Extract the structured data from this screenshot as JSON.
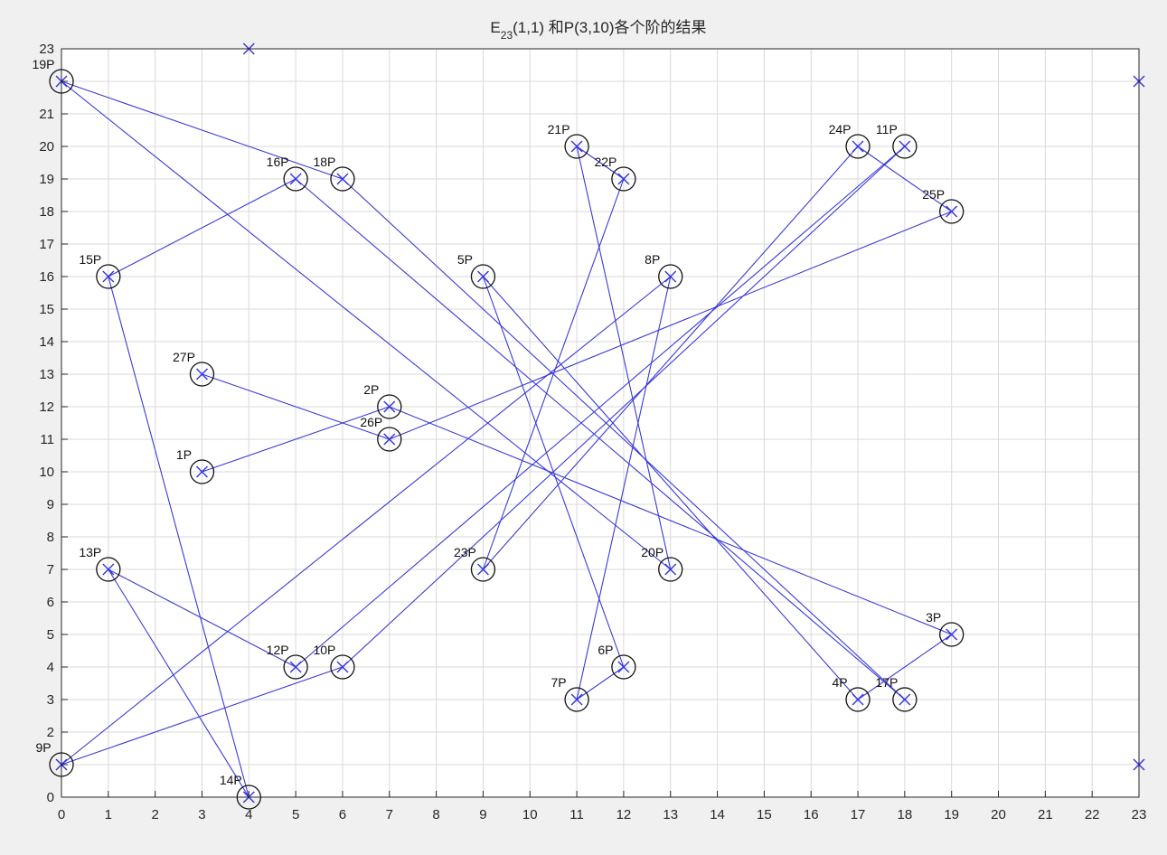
{
  "chart_data": {
    "type": "scatter",
    "title": {
      "base": "E",
      "subscript": "23",
      "rest": "(1,1) 和P(3,10)各个阶的结果"
    },
    "xlabel": "",
    "ylabel": "",
    "xlim": [
      0,
      23
    ],
    "ylim": [
      0,
      23
    ],
    "xticks": [
      0,
      1,
      2,
      3,
      4,
      5,
      6,
      7,
      8,
      9,
      10,
      11,
      12,
      13,
      14,
      15,
      16,
      17,
      18,
      19,
      20,
      21,
      22,
      23
    ],
    "yticks": [
      0,
      1,
      2,
      3,
      4,
      5,
      6,
      7,
      8,
      9,
      10,
      11,
      12,
      13,
      14,
      15,
      16,
      17,
      18,
      19,
      20,
      21,
      22,
      23
    ],
    "ytick_labels": [
      "0",
      "",
      "2",
      "3",
      "4",
      "5",
      "6",
      "7",
      "8",
      "9",
      "10",
      "11",
      "12",
      "13",
      "14",
      "15",
      "16",
      "17",
      "18",
      "19",
      "20",
      "21",
      "",
      "23"
    ],
    "grid": true,
    "colors": {
      "marker": "#3333dd",
      "line": "#3a3ad6",
      "circle": "#111111",
      "grid": "#d9d9d9",
      "axes": "#262626",
      "plot_bg": "#ffffff",
      "figure_bg": "#f0f0f0"
    },
    "curve_points": [
      {
        "x": 0,
        "y": 1
      },
      {
        "x": 0,
        "y": 22
      },
      {
        "x": 1,
        "y": 7
      },
      {
        "x": 1,
        "y": 16
      },
      {
        "x": 3,
        "y": 10
      },
      {
        "x": 3,
        "y": 13
      },
      {
        "x": 4,
        "y": 0
      },
      {
        "x": 4,
        "y": 23
      },
      {
        "x": 5,
        "y": 4
      },
      {
        "x": 5,
        "y": 19
      },
      {
        "x": 6,
        "y": 4
      },
      {
        "x": 6,
        "y": 19
      },
      {
        "x": 7,
        "y": 11
      },
      {
        "x": 7,
        "y": 12
      },
      {
        "x": 9,
        "y": 7
      },
      {
        "x": 9,
        "y": 16
      },
      {
        "x": 11,
        "y": 3
      },
      {
        "x": 11,
        "y": 20
      },
      {
        "x": 12,
        "y": 4
      },
      {
        "x": 12,
        "y": 19
      },
      {
        "x": 13,
        "y": 7
      },
      {
        "x": 13,
        "y": 16
      },
      {
        "x": 17,
        "y": 3
      },
      {
        "x": 17,
        "y": 20
      },
      {
        "x": 18,
        "y": 3
      },
      {
        "x": 18,
        "y": 20
      },
      {
        "x": 19,
        "y": 5
      },
      {
        "x": 19,
        "y": 18
      },
      {
        "x": 23,
        "y": 1
      },
      {
        "x": 23,
        "y": 22
      }
    ],
    "multiples": [
      {
        "label": "1P",
        "x": 3,
        "y": 10
      },
      {
        "label": "2P",
        "x": 7,
        "y": 12
      },
      {
        "label": "3P",
        "x": 19,
        "y": 5
      },
      {
        "label": "4P",
        "x": 17,
        "y": 3
      },
      {
        "label": "5P",
        "x": 9,
        "y": 16
      },
      {
        "label": "6P",
        "x": 12,
        "y": 4
      },
      {
        "label": "7P",
        "x": 11,
        "y": 3
      },
      {
        "label": "8P",
        "x": 13,
        "y": 16
      },
      {
        "label": "9P",
        "x": 0,
        "y": 1
      },
      {
        "label": "10P",
        "x": 6,
        "y": 4
      },
      {
        "label": "11P",
        "x": 18,
        "y": 20
      },
      {
        "label": "12P",
        "x": 5,
        "y": 4
      },
      {
        "label": "13P",
        "x": 1,
        "y": 7
      },
      {
        "label": "14P",
        "x": 4,
        "y": 0
      },
      {
        "label": "15P",
        "x": 1,
        "y": 16
      },
      {
        "label": "16P",
        "x": 5,
        "y": 19
      },
      {
        "label": "17P",
        "x": 18,
        "y": 3
      },
      {
        "label": "18P",
        "x": 6,
        "y": 19
      },
      {
        "label": "19P",
        "x": 0,
        "y": 22
      },
      {
        "label": "20P",
        "x": 13,
        "y": 7
      },
      {
        "label": "21P",
        "x": 11,
        "y": 20
      },
      {
        "label": "22P",
        "x": 12,
        "y": 19
      },
      {
        "label": "23P",
        "x": 9,
        "y": 7
      },
      {
        "label": "24P",
        "x": 17,
        "y": 20
      },
      {
        "label": "25P",
        "x": 19,
        "y": 18
      },
      {
        "label": "26P",
        "x": 7,
        "y": 11
      },
      {
        "label": "27P",
        "x": 3,
        "y": 13
      }
    ]
  }
}
